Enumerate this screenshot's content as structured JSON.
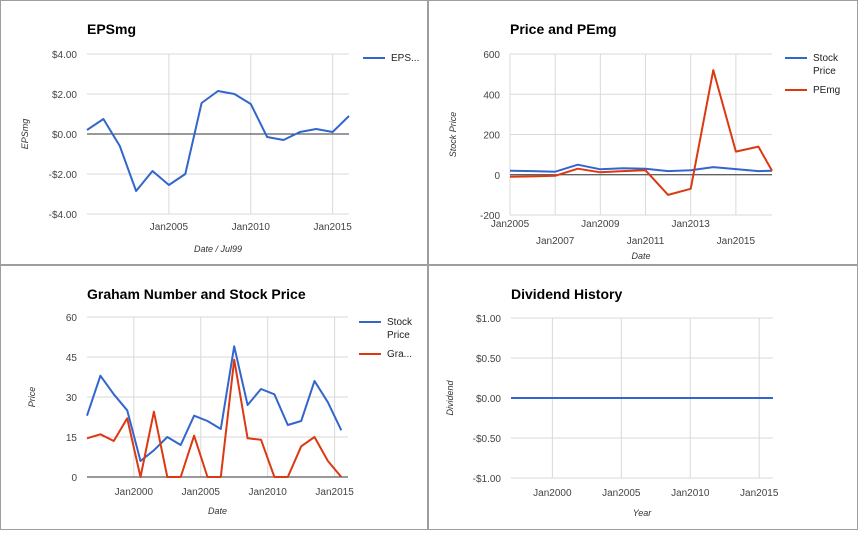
{
  "chart_data": [
    {
      "type": "line",
      "title": "EPSmg",
      "xlabel": "Date / Jul99",
      "ylabel": "EPSmg",
      "x_ticks": [
        "Jan2005",
        "Jan2010",
        "Jan2015"
      ],
      "x_tick_values": [
        2005,
        2010,
        2015
      ],
      "xlim": [
        2000,
        2016
      ],
      "ylim": [
        -4,
        4
      ],
      "y_ticks": [
        "$4.00",
        "$2.00",
        "$0.00",
        "-$2.00",
        "-$4.00"
      ],
      "y_tick_values": [
        4,
        2,
        0,
        -2,
        -4
      ],
      "grid": true,
      "legend_position": "right",
      "zero_line": true,
      "series": [
        {
          "name": "EPS...",
          "color": "#3366cc",
          "x": [
            2000,
            2001,
            2002,
            2003,
            2004,
            2005,
            2006,
            2007,
            2008,
            2009,
            2010,
            2011,
            2012,
            2013,
            2014,
            2015,
            2016
          ],
          "values": [
            0.2,
            0.75,
            -0.6,
            -2.85,
            -1.85,
            -2.55,
            -2.0,
            1.55,
            2.15,
            2.0,
            1.5,
            -0.15,
            -0.3,
            0.1,
            0.25,
            0.1,
            0.9
          ]
        }
      ]
    },
    {
      "type": "line",
      "title": "Price and PEmg",
      "xlabel": "Date",
      "ylabel": "Stock Price",
      "x_ticks_top": [
        "Jan2005",
        "Jan2009",
        "Jan2013"
      ],
      "x_ticks_top_values": [
        2005,
        2009,
        2013
      ],
      "x_ticks_bottom": [
        "Jan2007",
        "Jan2011",
        "Jan2015"
      ],
      "x_ticks_bottom_values": [
        2007,
        2011,
        2015
      ],
      "xlim": [
        2005,
        2016.6
      ],
      "ylim": [
        -200,
        600
      ],
      "y_ticks": [
        "600",
        "400",
        "200",
        "0",
        "-200"
      ],
      "y_tick_values": [
        600,
        400,
        200,
        0,
        -200
      ],
      "grid": true,
      "legend_position": "right",
      "zero_line": true,
      "series": [
        {
          "name": "Stock Price",
          "color": "#3366cc",
          "x": [
            2005,
            2006,
            2007,
            2008,
            2009,
            2010,
            2011,
            2012,
            2013,
            2014,
            2015,
            2016,
            2016.6
          ],
          "values": [
            20,
            18,
            15,
            50,
            27,
            32,
            30,
            18,
            22,
            38,
            28,
            18,
            20
          ]
        },
        {
          "name": "PEmg",
          "color": "#dc3912",
          "x": [
            2005,
            2006,
            2007,
            2008,
            2009,
            2010,
            2011,
            2012,
            2013,
            2014,
            2015,
            2016,
            2016.6
          ],
          "values": [
            -10,
            -8,
            -5,
            30,
            12,
            18,
            22,
            -100,
            -70,
            520,
            115,
            140,
            20
          ]
        }
      ]
    },
    {
      "type": "line",
      "title": "Graham Number and Stock Price",
      "xlabel": "Date",
      "ylabel": "Price",
      "x_ticks": [
        "Jan2000",
        "Jan2005",
        "Jan2010",
        "Jan2015"
      ],
      "x_tick_values": [
        2000,
        2005,
        2010,
        2015
      ],
      "xlim": [
        1996.5,
        2016
      ],
      "ylim": [
        0,
        60
      ],
      "y_ticks": [
        "60",
        "45",
        "30",
        "15",
        "0"
      ],
      "y_tick_values": [
        60,
        45,
        30,
        15,
        0
      ],
      "grid": true,
      "legend_position": "right",
      "series": [
        {
          "name": "Stock Price",
          "color": "#3366cc",
          "x": [
            1996.5,
            1997.5,
            1998.5,
            1999.5,
            2000.5,
            2001.5,
            2002.5,
            2003.5,
            2004.5,
            2005.5,
            2006.5,
            2007.5,
            2008.5,
            2009.5,
            2010.5,
            2011.5,
            2012.5,
            2013.5,
            2014.5,
            2015.5
          ],
          "values": [
            23,
            38,
            31,
            25,
            6,
            10,
            15,
            12,
            23,
            21,
            18,
            49,
            27,
            33,
            31,
            19.5,
            21,
            36,
            28,
            17.5
          ]
        },
        {
          "name": "Gra...",
          "color": "#dc3912",
          "x": [
            1996.5,
            1997.5,
            1998.5,
            1999.5,
            2000.5,
            2001.5,
            2002.5,
            2003.5,
            2004.5,
            2005.5,
            2006.5,
            2007.5,
            2008.5,
            2009.5,
            2010.5,
            2011.5,
            2012.5,
            2013.5,
            2014.5,
            2015.5
          ],
          "values": [
            14.5,
            16,
            13.5,
            22,
            0,
            24.5,
            0,
            0,
            15.5,
            0,
            0,
            44,
            14.5,
            14,
            0,
            0,
            11.5,
            15,
            6,
            0
          ]
        }
      ]
    },
    {
      "type": "line",
      "title": "Dividend History",
      "xlabel": "Year",
      "ylabel": "Dividend",
      "x_ticks": [
        "Jan2000",
        "Jan2005",
        "Jan2010",
        "Jan2015"
      ],
      "x_tick_values": [
        2000,
        2005,
        2010,
        2015
      ],
      "xlim": [
        1997,
        2016
      ],
      "ylim": [
        -1,
        1
      ],
      "y_ticks": [
        "$1.00",
        "$0.50",
        "$0.00",
        "-$0.50",
        "-$1.00"
      ],
      "y_tick_values": [
        1,
        0.5,
        0,
        -0.5,
        -1
      ],
      "grid": true,
      "series": [
        {
          "name": "Dividend",
          "color": "#3366cc",
          "x": [
            1997,
            2016
          ],
          "values": [
            0,
            0
          ]
        }
      ]
    }
  ]
}
